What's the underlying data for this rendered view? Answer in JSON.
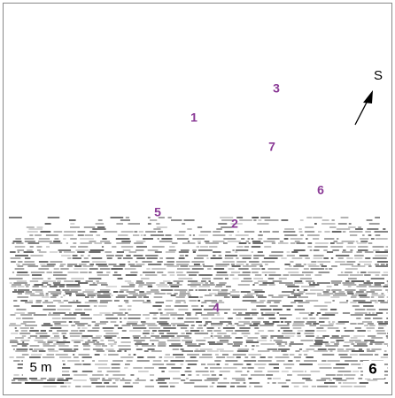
{
  "labels": [
    "1",
    "2",
    "3",
    "4",
    "5",
    "6",
    "7"
  ],
  "compass": {
    "label": "S"
  },
  "scale_bar": {
    "label": "5 m"
  },
  "corner_label": "6"
}
